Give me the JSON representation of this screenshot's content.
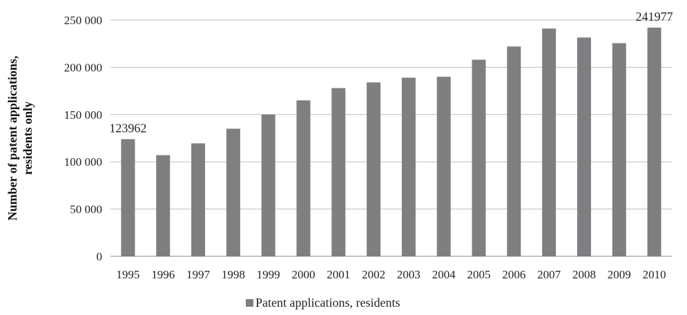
{
  "chart_data": {
    "type": "bar",
    "categories": [
      "1995",
      "1996",
      "1997",
      "1998",
      "1999",
      "2000",
      "2001",
      "2002",
      "2003",
      "2004",
      "2005",
      "2006",
      "2007",
      "2008",
      "2009",
      "2010"
    ],
    "series": [
      {
        "name": "Patent applications, residents",
        "values": [
          123962,
          107000,
          119500,
          135000,
          150000,
          165000,
          178000,
          184000,
          189000,
          190000,
          208000,
          222000,
          241000,
          231500,
          225500,
          241977
        ]
      }
    ],
    "ylabel": "Number of patent applications, residents only",
    "xlabel": "",
    "ylim": [
      0,
      250000
    ],
    "yticks": [
      0,
      50000,
      100000,
      150000,
      200000,
      250000
    ],
    "ytick_labels": [
      "0",
      "50 000",
      "100 000",
      "150 000",
      "200 000",
      "250 000"
    ],
    "data_labels": [
      {
        "category": "1995",
        "text": "123962"
      },
      {
        "category": "2010",
        "text": "241977"
      }
    ],
    "grid": true,
    "legend": "bottom",
    "colors": {
      "bar": "#7f7f82",
      "grid": "#bdbdbd",
      "axis": "#888888"
    }
  }
}
